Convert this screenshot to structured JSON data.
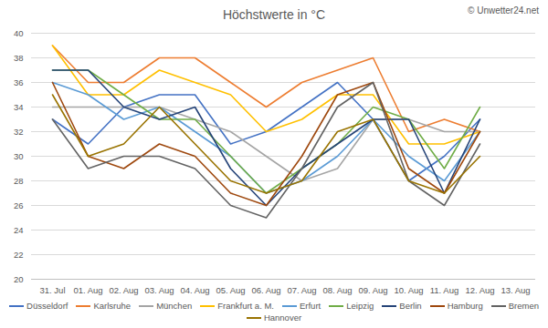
{
  "chart_data": {
    "type": "line",
    "title": "Höchstwerte in °C",
    "annotation": "© Unwetter24.net",
    "categories": [
      "31. Jul",
      "01. Aug",
      "02. Aug",
      "03. Aug",
      "04. Aug",
      "05. Aug",
      "06. Aug",
      "07. Aug",
      "08. Aug",
      "09. Aug",
      "10. Aug",
      "11. Aug",
      "12. Aug",
      "13. Aug"
    ],
    "series": [
      {
        "name": "Düsseldorf",
        "color": "#4472c4",
        "values": [
          33,
          31,
          34,
          35,
          35,
          31,
          32,
          34,
          36,
          33,
          28,
          30,
          33,
          null
        ]
      },
      {
        "name": "Karlsruhe",
        "color": "#ed7d31",
        "values": [
          39,
          36,
          36,
          38,
          38,
          36,
          34,
          36,
          37,
          38,
          32,
          33,
          32,
          null
        ]
      },
      {
        "name": "München",
        "color": "#a5a5a5",
        "values": [
          34,
          34,
          34,
          34,
          33,
          32,
          30,
          28,
          29,
          33,
          33,
          32,
          32,
          null
        ]
      },
      {
        "name": "Frankfurt a. M.",
        "color": "#ffc000",
        "values": [
          39,
          35,
          35,
          37,
          36,
          35,
          32,
          33,
          35,
          35,
          31,
          31,
          32,
          null
        ]
      },
      {
        "name": "Erfurt",
        "color": "#5b9bd5",
        "values": [
          36,
          35,
          33,
          34,
          32,
          30,
          27,
          28,
          30,
          33,
          30,
          28,
          32,
          null
        ]
      },
      {
        "name": "Leipzig",
        "color": "#70ad47",
        "values": [
          37,
          37,
          35,
          33,
          33,
          30,
          27,
          29,
          31,
          34,
          33,
          29,
          34,
          null
        ]
      },
      {
        "name": "Berlin",
        "color": "#264478",
        "values": [
          37,
          37,
          34,
          33,
          34,
          29,
          26,
          29,
          31,
          33,
          33,
          27,
          33,
          null
        ]
      },
      {
        "name": "Hamburg",
        "color": "#9e480e",
        "values": [
          36,
          30,
          29,
          31,
          30,
          27,
          26,
          30,
          35,
          36,
          29,
          27,
          32,
          null
        ]
      },
      {
        "name": "Bremen",
        "color": "#636363",
        "values": [
          33,
          29,
          30,
          30,
          29,
          26,
          25,
          29,
          34,
          36,
          28,
          26,
          31,
          null
        ]
      },
      {
        "name": "Hannover",
        "color": "#997300",
        "values": [
          35,
          30,
          31,
          34,
          31,
          28,
          27,
          28,
          32,
          33,
          28,
          27,
          30,
          null
        ]
      }
    ],
    "ylim": [
      20,
      40
    ],
    "yticks": [
      20,
      22,
      24,
      26,
      28,
      30,
      32,
      34,
      36,
      38,
      40
    ],
    "grid": true,
    "legend": "bottom"
  }
}
